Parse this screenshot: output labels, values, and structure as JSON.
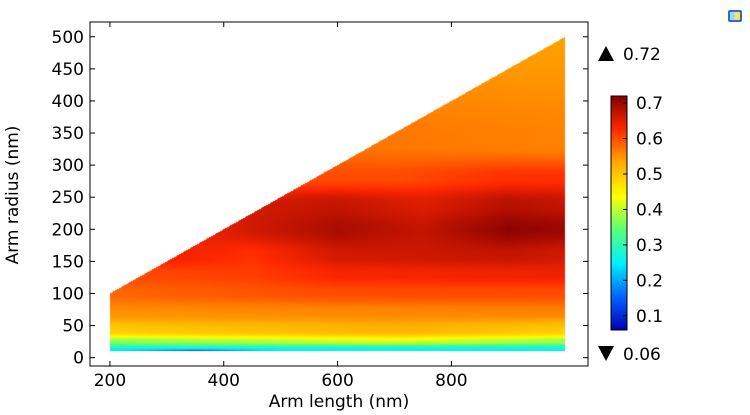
{
  "chart_data": {
    "type": "heatmap",
    "title": "",
    "xlabel": "Arm length (nm)",
    "ylabel": "Arm radius (nm)",
    "xlim": [
      165,
      1040
    ],
    "ylim": [
      -13,
      523
    ],
    "x_ticks": [
      200,
      400,
      600,
      800
    ],
    "y_ticks": [
      0,
      50,
      100,
      150,
      200,
      250,
      300,
      350,
      400,
      450,
      500
    ],
    "domain": {
      "x_range": [
        200,
        1000
      ],
      "y_range": [
        10,
        500
      ],
      "upper_boundary": [
        [
          200,
          100
        ],
        [
          1000,
          500
        ]
      ]
    },
    "samples": [
      {
        "y": 10,
        "x": [
          200,
          350,
          500,
          650,
          1000
        ],
        "v": [
          0.23,
          0.12,
          0.23,
          0.24,
          0.23
        ]
      },
      {
        "y": 15,
        "x": [
          200,
          1000
        ],
        "v": [
          0.28,
          0.28
        ]
      },
      {
        "y": 25,
        "x": [
          200,
          700,
          1000
        ],
        "v": [
          0.37,
          0.42,
          0.38
        ]
      },
      {
        "y": 40,
        "x": [
          200,
          700,
          1000
        ],
        "v": [
          0.49,
          0.52,
          0.49
        ]
      },
      {
        "y": 70,
        "x": [
          200,
          1000
        ],
        "v": [
          0.55,
          0.56
        ]
      },
      {
        "y": 100,
        "x": [
          200,
          600,
          1000
        ],
        "v": [
          0.58,
          0.6,
          0.6
        ]
      },
      {
        "y": 130,
        "x": [
          200,
          450,
          600,
          1000
        ],
        "v": [
          0.6,
          0.61,
          0.63,
          0.64
        ]
      },
      {
        "y": 160,
        "x": [
          200,
          300,
          450,
          600,
          900,
          1000
        ],
        "v": [
          0.62,
          0.64,
          0.62,
          0.66,
          0.67,
          0.66
        ]
      },
      {
        "y": 200,
        "x": [
          350,
          450,
          600,
          750,
          900,
          1000
        ],
        "v": [
          0.64,
          0.66,
          0.69,
          0.67,
          0.71,
          0.7
        ]
      },
      {
        "y": 240,
        "x": [
          450,
          600,
          750,
          900,
          1000
        ],
        "v": [
          0.66,
          0.67,
          0.65,
          0.68,
          0.67
        ]
      },
      {
        "y": 280,
        "x": [
          550,
          700,
          900,
          1000
        ],
        "v": [
          0.6,
          0.6,
          0.62,
          0.62
        ]
      },
      {
        "y": 330,
        "x": [
          650,
          1000
        ],
        "v": [
          0.57,
          0.56
        ]
      },
      {
        "y": 500,
        "x": [
          1000
        ],
        "v": [
          0.54
        ]
      }
    ],
    "colorbar": {
      "colormap": "rainbow",
      "min": 0.06,
      "max": 0.72,
      "ticks": [
        0.1,
        0.2,
        0.3,
        0.4,
        0.5,
        0.6,
        0.7
      ],
      "max_label": "0.72",
      "min_label": "0.06"
    }
  },
  "colors": {
    "plot_border": "#000000",
    "background": "#ffffff",
    "colormap_stops": [
      "#0000b4",
      "#0064ff",
      "#00f0ff",
      "#5aff78",
      "#ffff00",
      "#ffaa00",
      "#ff2800",
      "#820000"
    ]
  },
  "icons": {
    "max_marker": "triangle-up-icon",
    "min_marker": "triangle-down-icon",
    "app_icon": "screen-icon"
  }
}
